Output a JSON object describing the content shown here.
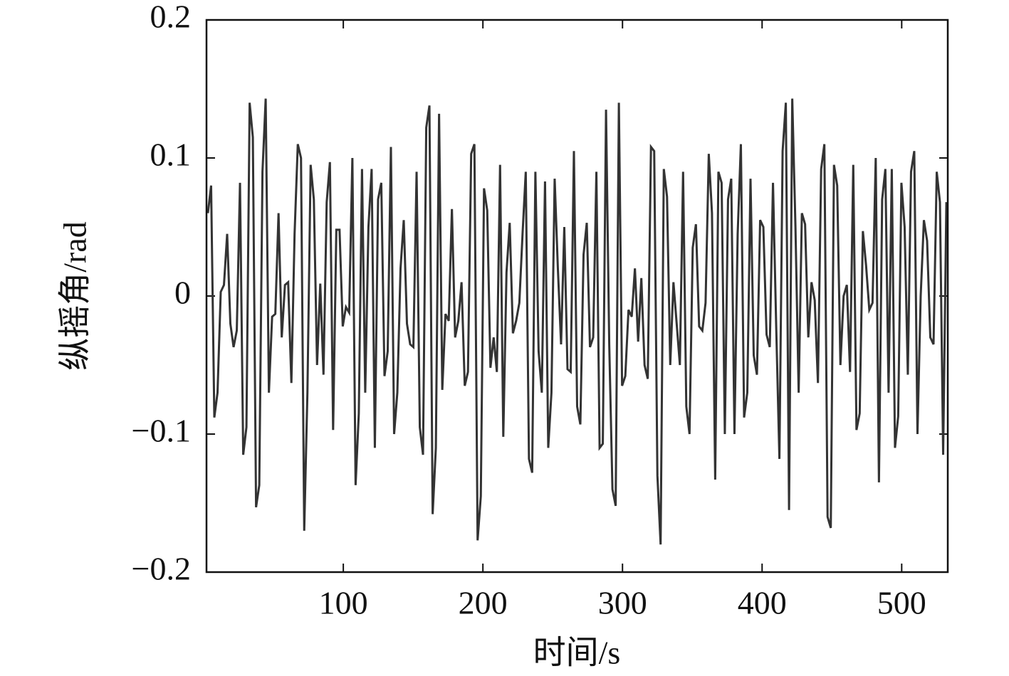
{
  "chart_data": {
    "type": "line",
    "xlabel": "时间/s",
    "ylabel": "纵摇角/rad",
    "xlim": [
      2,
      533
    ],
    "ylim": [
      -0.2,
      0.2
    ],
    "xticks": [
      100,
      200,
      300,
      400,
      500
    ],
    "yticks": [
      {
        "value": -0.2,
        "label": "−0.2"
      },
      {
        "value": -0.1,
        "label": "−0.1"
      },
      0,
      0.1,
      0.2
    ],
    "color": "#333333",
    "x": [
      3,
      5.3,
      7.6,
      9.9,
      12.2,
      14.5,
      16.8,
      19.1,
      21.4,
      23.7,
      26,
      28.3,
      30.6,
      32.9,
      35.2,
      37.5,
      39.8,
      42.1,
      44.4,
      46.7,
      49,
      51.3,
      53.6,
      55.9,
      58.2,
      60.5,
      62.8,
      65.1,
      67.4,
      69.7,
      72,
      74.3,
      76.6,
      78.9,
      81.2,
      83.5,
      85.8,
      88.1,
      90.4,
      92.7,
      95,
      97.3,
      99.6,
      101.9,
      104.2,
      106.5,
      108.8,
      111.1,
      113.4,
      115.7,
      118,
      120.3,
      122.6,
      124.9,
      127.2,
      129.5,
      131.8,
      134.1,
      136.4,
      138.7,
      141,
      143.3,
      145.6,
      147.9,
      150.2,
      152.5,
      154.8,
      157.1,
      159.4,
      161.7,
      164,
      166.3,
      168.6,
      170.9,
      173.2,
      175.5,
      177.8,
      180.1,
      182.4,
      184.7,
      187,
      189.3,
      191.6,
      193.9,
      196.2,
      198.5,
      200.8,
      203.1,
      205.4,
      207.7,
      210,
      212.3,
      214.6,
      216.9,
      219.2,
      221.5,
      223.8,
      226.1,
      228.4,
      230.7,
      233,
      235.3,
      237.6,
      239.9,
      242.2,
      244.5,
      246.8,
      249.1,
      251.4,
      253.7,
      256,
      258.3,
      260.6,
      262.9,
      265.2,
      267.5,
      269.8,
      272.1,
      274.4,
      276.7,
      279,
      281.3,
      283.6,
      285.9,
      288.2,
      290.5,
      292.8,
      295.1,
      297.4,
      299.7,
      302,
      304.3,
      306.6,
      308.9,
      311.2,
      313.5,
      315.8,
      318.1,
      320.4,
      322.7,
      325,
      327.3,
      329.6,
      331.9,
      334.2,
      336.5,
      338.8,
      341.1,
      343.4,
      345.7,
      348,
      350.3,
      352.6,
      354.9,
      357.2,
      359.5,
      361.8,
      364.1,
      366.4,
      368.7,
      371,
      373.3,
      375.6,
      377.9,
      380.2,
      382.5,
      384.8,
      387.1,
      389.4,
      391.7,
      394,
      396.3,
      398.6,
      400.9,
      403.2,
      405.5,
      407.8,
      410.1,
      412.4,
      414.7,
      417,
      419.3,
      421.6,
      423.9,
      426.2,
      428.5,
      430.8,
      433.1,
      435.4,
      437.7,
      440,
      442.3,
      444.6,
      446.9,
      449.2,
      451.5,
      453.8,
      456.1,
      458.4,
      460.7,
      463,
      465.3,
      467.6,
      469.9,
      472.2,
      474.5,
      476.8,
      479.1,
      481.4,
      483.7,
      486,
      488.3,
      490.6,
      492.9,
      495.2,
      497.5,
      499.8,
      502.1,
      504.4,
      506.7,
      509,
      511.3,
      513.6,
      515.9,
      518.2,
      520.5,
      522.8,
      525.1,
      527.4,
      529.7,
      532
    ],
    "values": [
      0.06,
      0.08,
      -0.088,
      -0.07,
      0.003,
      0.008,
      0.045,
      -0.02,
      -0.037,
      -0.025,
      0.082,
      -0.115,
      -0.095,
      0.14,
      0.115,
      -0.153,
      -0.137,
      0.09,
      0.143,
      -0.07,
      -0.015,
      -0.013,
      0.06,
      -0.03,
      0.008,
      0.01,
      -0.063,
      0.045,
      0.11,
      0.1,
      -0.17,
      -0.07,
      0.095,
      0.07,
      -0.05,
      0.009,
      -0.057,
      0.068,
      0.097,
      -0.097,
      0.048,
      0.048,
      -0.022,
      -0.008,
      -0.012,
      0.1,
      -0.137,
      -0.085,
      0.092,
      -0.07,
      0.05,
      0.092,
      -0.11,
      0.07,
      0.082,
      -0.058,
      -0.04,
      0.108,
      -0.1,
      -0.07,
      0.02,
      0.055,
      -0.02,
      -0.035,
      -0.037,
      0.09,
      -0.095,
      -0.115,
      0.122,
      0.138,
      -0.158,
      -0.11,
      0.132,
      -0.068,
      -0.013,
      -0.018,
      0.063,
      -0.03,
      -0.018,
      0.01,
      -0.065,
      -0.055,
      0.103,
      0.11,
      -0.177,
      -0.145,
      0.078,
      0.062,
      -0.052,
      -0.03,
      -0.055,
      0.095,
      -0.102,
      0.017,
      0.053,
      -0.027,
      -0.018,
      -0.005,
      0.045,
      0.09,
      -0.118,
      -0.128,
      0.09,
      -0.04,
      -0.07,
      0.083,
      -0.11,
      -0.07,
      0.085,
      0.02,
      -0.035,
      0.05,
      -0.053,
      -0.055,
      0.105,
      -0.08,
      -0.093,
      0.03,
      0.053,
      -0.037,
      -0.03,
      0.09,
      -0.11,
      -0.107,
      0.135,
      -0.035,
      -0.14,
      -0.152,
      0.14,
      -0.065,
      -0.058,
      -0.01,
      -0.015,
      0.02,
      -0.033,
      0.013,
      -0.05,
      -0.06,
      0.108,
      0.105,
      -0.13,
      -0.18,
      0.092,
      0.072,
      -0.05,
      0.01,
      -0.02,
      -0.05,
      0.09,
      -0.08,
      -0.1,
      0.035,
      0.052,
      -0.022,
      -0.025,
      -0.005,
      0.103,
      0.06,
      -0.133,
      0.09,
      0.082,
      -0.1,
      0.07,
      0.085,
      -0.1,
      0.045,
      0.11,
      -0.088,
      -0.07,
      0.085,
      -0.043,
      -0.057,
      0.055,
      0.05,
      -0.028,
      -0.037,
      0.082,
      -0.022,
      -0.118,
      0.105,
      0.14,
      -0.155,
      0.143,
      0.05,
      -0.07,
      0.06,
      0.052,
      -0.03,
      0.01,
      -0.003,
      -0.063,
      0.092,
      0.11,
      -0.16,
      -0.168,
      0.095,
      0.08,
      -0.05,
      0.0,
      0.008,
      -0.055,
      0.095,
      -0.097,
      -0.085,
      0.047,
      0.022,
      -0.01,
      -0.005,
      0.1,
      -0.135,
      0.07,
      0.092,
      -0.07,
      0.092,
      -0.11,
      -0.087,
      0.082,
      0.05,
      -0.057,
      0.09,
      0.105,
      -0.1,
      0.0,
      0.055,
      0.04,
      -0.03,
      -0.035,
      0.09,
      0.068,
      -0.115,
      0.068
    ]
  }
}
